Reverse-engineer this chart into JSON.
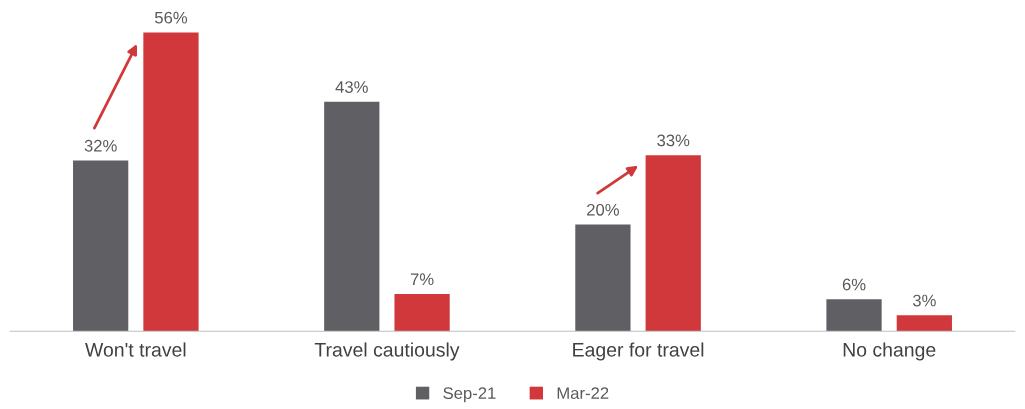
{
  "chart_data": {
    "type": "bar",
    "categories": [
      "Won't travel",
      "Travel cautiously",
      "Eager for travel",
      "No change"
    ],
    "series": [
      {
        "name": "Sep-21",
        "color": "#5f5f64",
        "values": [
          32,
          43,
          20,
          6
        ],
        "value_labels": [
          "32%",
          "43%",
          "20%",
          "6%"
        ]
      },
      {
        "name": "Mar-22",
        "color": "#d0383b",
        "values": [
          56,
          7,
          33,
          3
        ],
        "value_labels": [
          "56%",
          "7%",
          "33%",
          "3%"
        ]
      }
    ],
    "legend": "bottom",
    "grid": false
  }
}
